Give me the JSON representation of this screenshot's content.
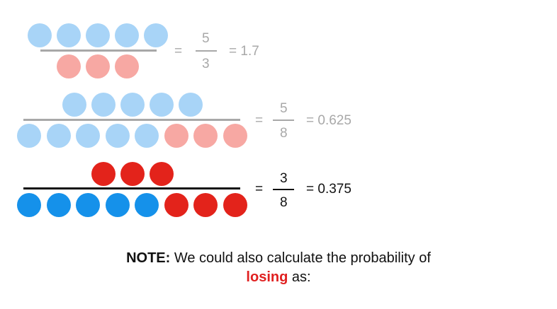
{
  "colors": {
    "blue_faded": "#a8d4f7",
    "red_faded": "#f7a8a3",
    "blue": "#1591ea",
    "red": "#e3231b",
    "line_faded": "#a8a8a8",
    "line_dark": "#111111",
    "highlight": "#e02020"
  },
  "rows": [
    {
      "numerator_dots": [
        "blue_faded",
        "blue_faded",
        "blue_faded",
        "blue_faded",
        "blue_faded"
      ],
      "denominator_dots": [
        "red_faded",
        "red_faded",
        "red_faded"
      ],
      "equals": "=",
      "fraction_numerator": "5",
      "fraction_denominator": "3",
      "result": "= 1.7",
      "style": "faded"
    },
    {
      "numerator_dots": [
        "blue_faded",
        "blue_faded",
        "blue_faded",
        "blue_faded",
        "blue_faded"
      ],
      "denominator_dots": [
        "blue_faded",
        "blue_faded",
        "blue_faded",
        "blue_faded",
        "blue_faded",
        "red_faded",
        "red_faded",
        "red_faded"
      ],
      "equals": "=",
      "fraction_numerator": "5",
      "fraction_denominator": "8",
      "result": "= 0.625",
      "style": "faded"
    },
    {
      "numerator_dots": [
        "red",
        "red",
        "red"
      ],
      "denominator_dots": [
        "blue",
        "blue",
        "blue",
        "blue",
        "blue",
        "red",
        "red",
        "red"
      ],
      "equals": "=",
      "fraction_numerator": "3",
      "fraction_denominator": "8",
      "result": "= 0.375",
      "style": "dark"
    }
  ],
  "note": {
    "label": "NOTE:",
    "line1": "We could also calculate the probability of",
    "highlight": "losing",
    "line2_rest": "as:"
  }
}
